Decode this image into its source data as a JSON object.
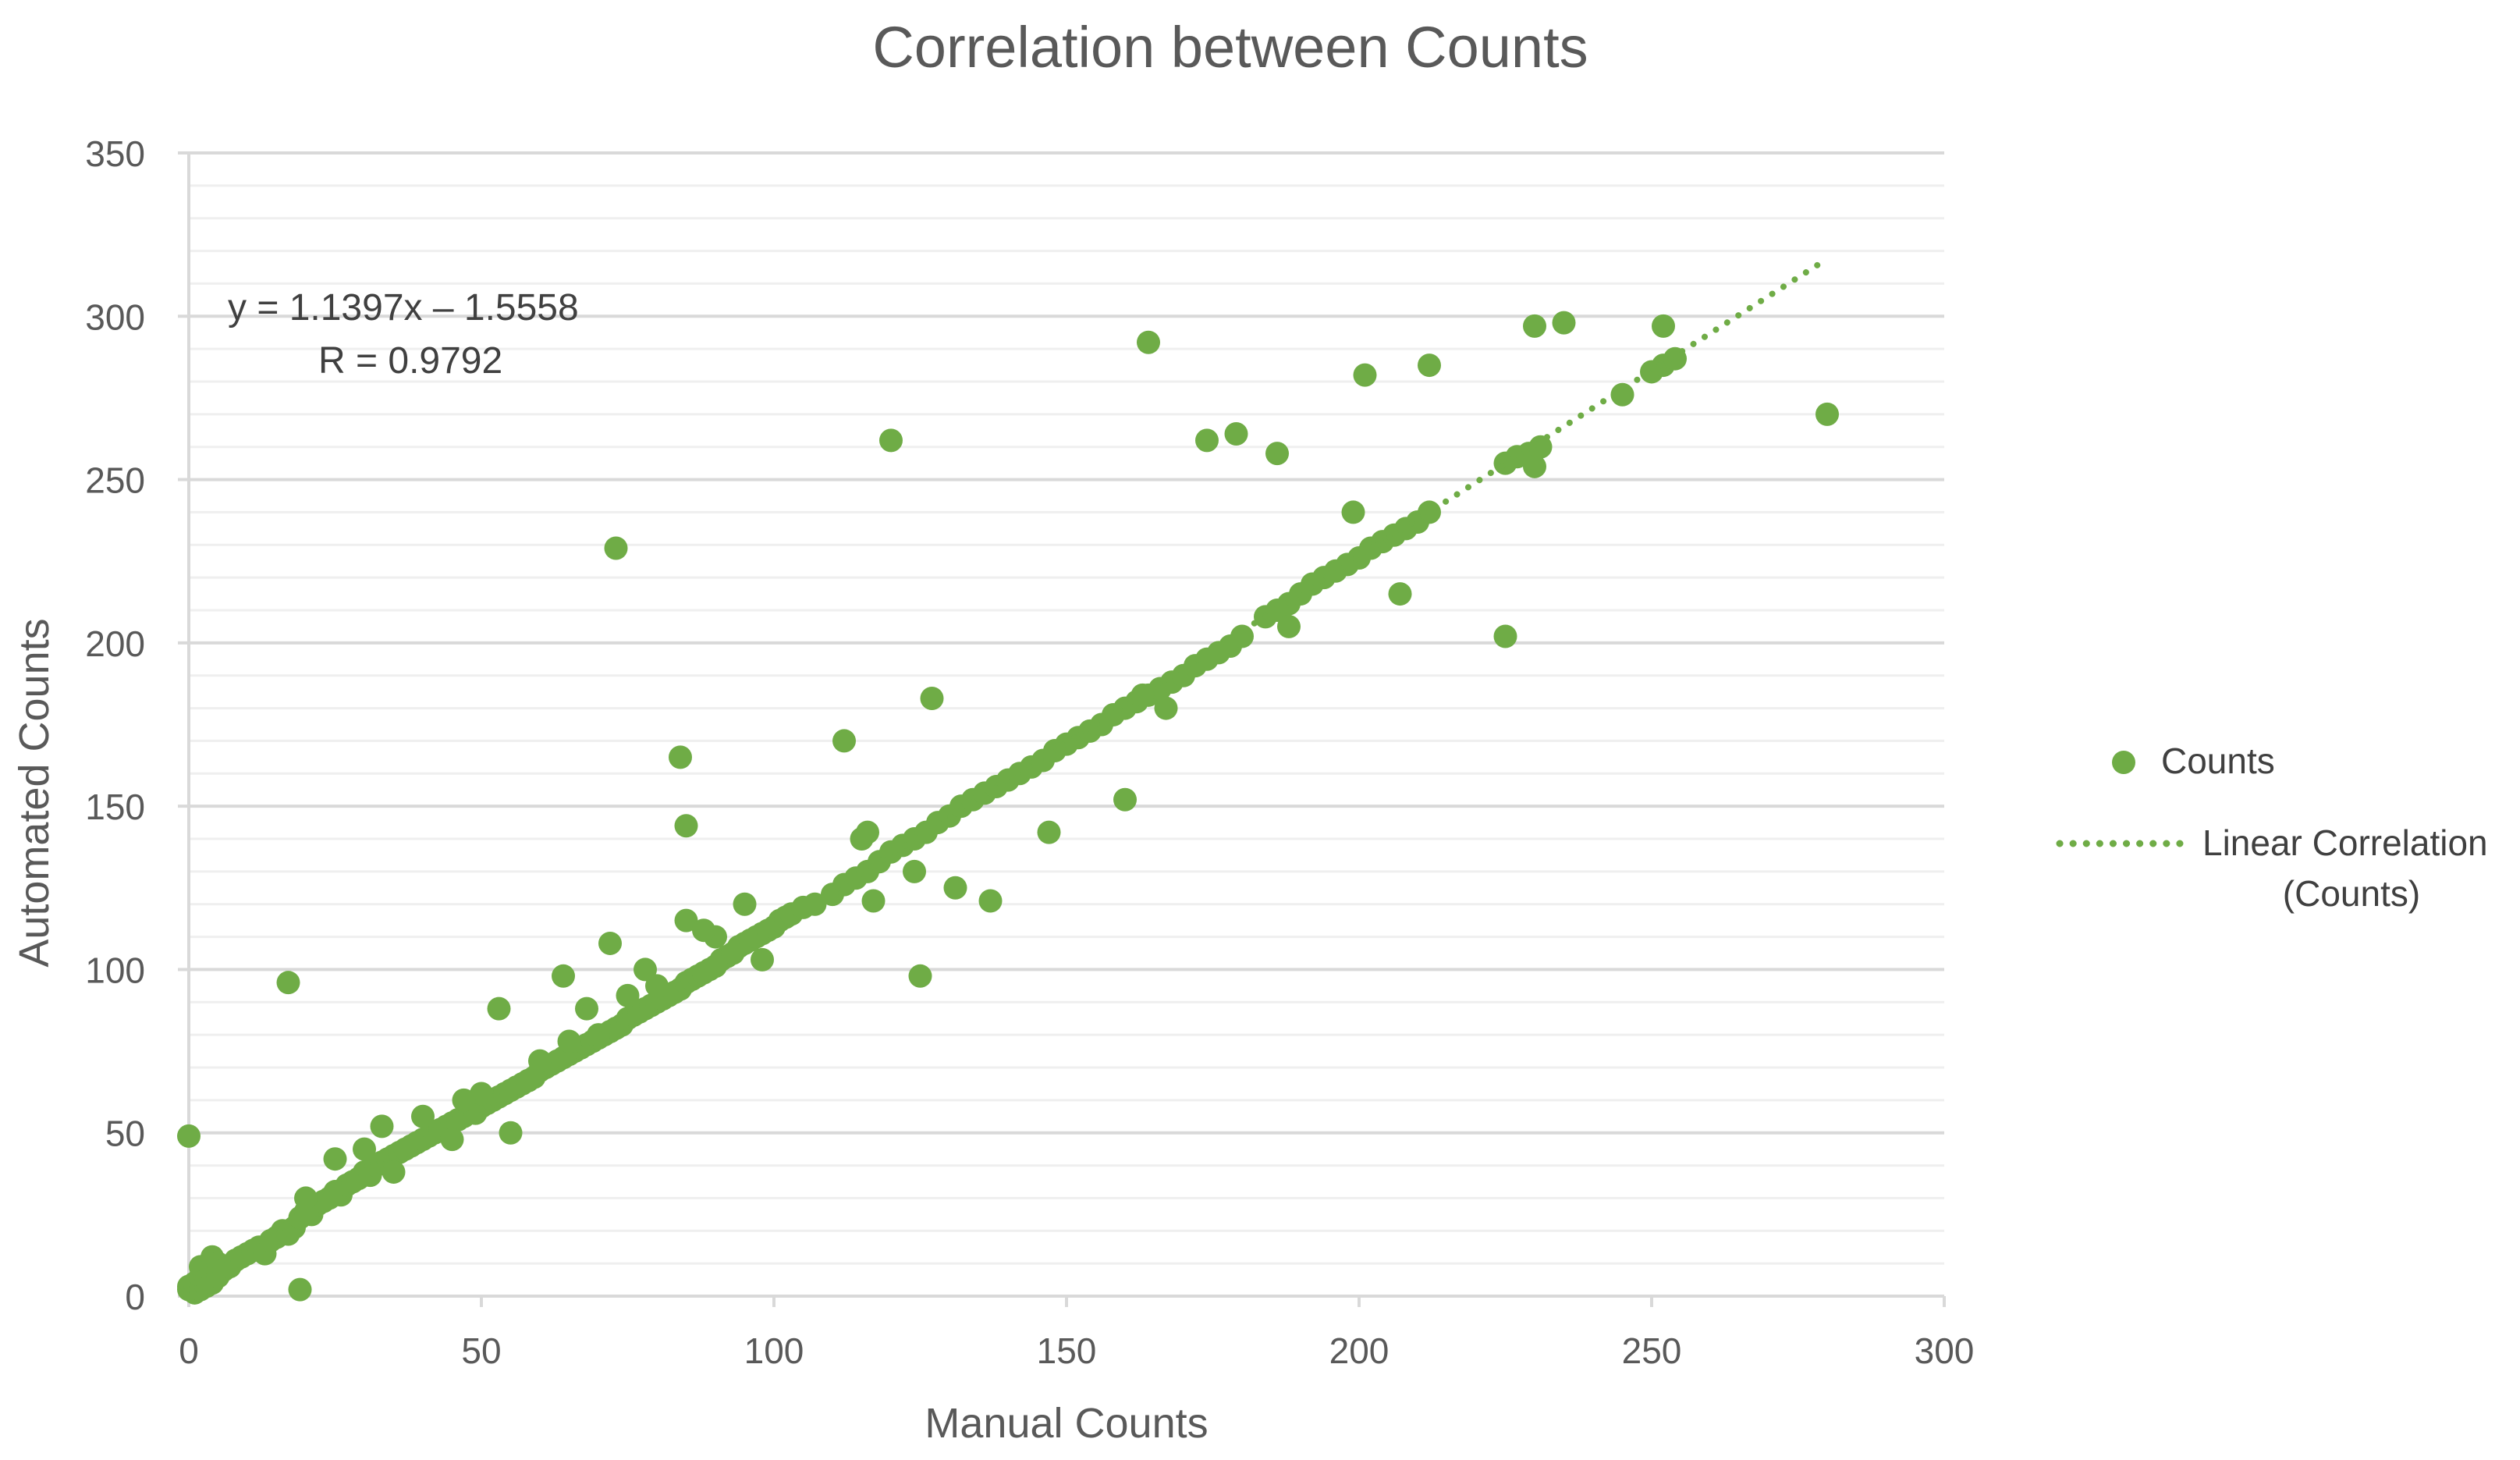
{
  "colors": {
    "series": "#6fac46",
    "trendline": "#6fac46",
    "grid_major": "#d9d9d9",
    "grid_minor": "#efefef",
    "axis": "#d9d9d9",
    "text": "#595959",
    "title": "#595959",
    "label_dark": "#404040"
  },
  "chart_data": {
    "type": "scatter",
    "title": "Correlation between Counts",
    "xlabel": "Manual Counts",
    "ylabel": "Automated Counts",
    "xlim": [
      0,
      300
    ],
    "ylim": [
      0,
      350
    ],
    "x_ticks": [
      0,
      50,
      100,
      150,
      200,
      250,
      300
    ],
    "y_ticks": [
      0,
      50,
      100,
      150,
      200,
      250,
      300,
      350
    ],
    "x_tick_labels": [
      "0",
      "50",
      "100",
      "150",
      "200",
      "250",
      "300"
    ],
    "y_tick_labels": [
      "0",
      "50",
      "100",
      "150",
      "200",
      "250",
      "300",
      "350"
    ],
    "legend_position": "right",
    "legend": {
      "series_label": "Counts",
      "trend_label_line1": "Linear Correlation",
      "trend_label_line2": "(Counts)"
    },
    "annotation": {
      "equation": "y = 1.1397x – 1.5558",
      "r_value": "R = 0.9792"
    },
    "trendline": {
      "slope": 1.1397,
      "intercept": -1.5558,
      "x_start": 109,
      "x_end": 280
    },
    "series": [
      {
        "name": "Counts",
        "x": [
          0,
          0,
          1,
          1,
          2,
          2,
          2,
          3,
          3,
          4,
          4,
          4,
          5,
          5,
          6,
          7,
          8,
          9,
          10,
          11,
          12,
          13,
          14,
          15,
          16,
          17,
          18,
          19,
          20,
          21,
          22,
          23,
          24,
          25,
          26,
          27,
          28,
          29,
          30,
          31,
          32,
          33,
          34,
          35,
          36,
          37,
          38,
          39,
          40,
          41,
          42,
          43,
          44,
          45,
          46,
          47,
          48,
          49,
          50,
          51,
          52,
          53,
          54,
          55,
          56,
          57,
          58,
          59,
          60,
          61,
          62,
          63,
          64,
          65,
          66,
          67,
          68,
          69,
          70,
          71,
          72,
          73,
          74,
          75,
          76,
          77,
          78,
          79,
          80,
          81,
          82,
          83,
          84,
          85,
          86,
          87,
          88,
          89,
          90,
          91,
          92,
          93,
          94,
          95,
          96,
          97,
          98,
          99,
          100,
          101,
          102,
          103,
          105,
          107,
          110,
          112,
          114,
          116,
          118,
          120,
          122,
          124,
          126,
          128,
          130,
          132,
          134,
          136,
          138,
          140,
          142,
          144,
          146,
          148,
          150,
          152,
          154,
          156,
          158,
          160,
          162,
          164,
          166,
          168,
          170,
          172,
          174,
          176,
          178,
          180,
          184,
          186,
          188,
          190,
          192,
          194,
          196,
          198,
          200,
          202,
          204,
          206,
          208,
          210,
          212,
          225,
          227,
          229,
          231,
          245,
          250,
          252,
          254,
          280,
          20,
          30,
          40,
          50,
          60,
          70,
          80,
          90,
          35,
          45,
          55,
          65,
          75,
          85,
          95,
          25,
          33,
          47,
          58,
          68,
          78,
          88,
          98,
          0,
          17,
          19,
          53,
          64,
          72,
          73,
          84,
          85,
          112,
          120,
          125,
          127,
          117,
          164,
          201,
          212,
          230,
          235,
          252,
          163,
          179,
          174,
          186,
          188,
          199,
          207,
          225,
          230,
          160,
          167,
          147,
          137,
          115,
          124,
          116,
          131
        ],
        "y": [
          2,
          3,
          1,
          4,
          2,
          6,
          9,
          3,
          5,
          7,
          12,
          4,
          6,
          10,
          8,
          9,
          11,
          12,
          13,
          14,
          15,
          13,
          17,
          18,
          20,
          19,
          21,
          24,
          26,
          25,
          28,
          29,
          30,
          32,
          31,
          34,
          35,
          36,
          38,
          37,
          40,
          41,
          42,
          43,
          44,
          45,
          46,
          47,
          48,
          49,
          50,
          51,
          52,
          53,
          54,
          55,
          57,
          56,
          58,
          59,
          60,
          61,
          62,
          63,
          64,
          65,
          66,
          67,
          69,
          70,
          71,
          72,
          73,
          74,
          75,
          76,
          77,
          78,
          79,
          80,
          81,
          82,
          83,
          85,
          86,
          87,
          88,
          89,
          90,
          91,
          92,
          93,
          94,
          96,
          97,
          98,
          99,
          100,
          101,
          103,
          104,
          105,
          107,
          108,
          109,
          110,
          111,
          112,
          113,
          115,
          116,
          117,
          119,
          120,
          123,
          126,
          128,
          130,
          133,
          136,
          138,
          140,
          142,
          145,
          147,
          150,
          152,
          154,
          156,
          158,
          160,
          162,
          164,
          167,
          169,
          171,
          173,
          175,
          178,
          180,
          182,
          184,
          186,
          188,
          190,
          193,
          195,
          197,
          199,
          202,
          208,
          210,
          212,
          215,
          218,
          220,
          222,
          224,
          226,
          229,
          231,
          233,
          235,
          237,
          240,
          255,
          257,
          258,
          260,
          276,
          283,
          285,
          287,
          270,
          30,
          45,
          55,
          62,
          72,
          80,
          95,
          110,
          38,
          48,
          50,
          78,
          92,
          115,
          120,
          42,
          52,
          60,
          66,
          88,
          100,
          112,
          103,
          49,
          96,
          2,
          88,
          98,
          108,
          229,
          165,
          144,
          170,
          262,
          98,
          183,
          121,
          292,
          282,
          285,
          297,
          298,
          297,
          184,
          264,
          262,
          258,
          205,
          240,
          215,
          202,
          254,
          152,
          180,
          142,
          121,
          140,
          130,
          142,
          125
        ]
      }
    ]
  }
}
